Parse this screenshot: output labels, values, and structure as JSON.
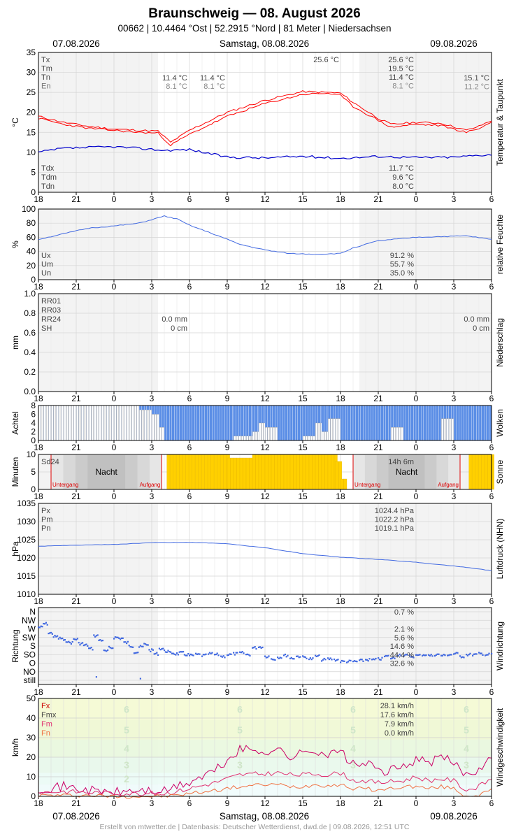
{
  "header": {
    "title": "Braunschweig  —  08. August 2026",
    "subtitle": "00662  |  10.4464 °Ost  |  52.2915 °Nord  |  81 Meter  |  Niedersachsen",
    "date_left": "07.08.2026",
    "date_center": "Samstag, 08.08.2026",
    "date_right": "09.08.2026"
  },
  "footer": {
    "credit": "Erstellt von mtwetter.de | Datenbasis: Deutscher Wetterdienst, dwd.de | 09.08.2026, 12:51 UTC"
  },
  "x_ticks": [
    "18",
    "21",
    "0",
    "3",
    "6",
    "9",
    "12",
    "15",
    "18",
    "21",
    "0",
    "3",
    "6"
  ],
  "x_range_hours": [
    -6,
    30
  ],
  "night_bands_hours": [
    [
      -6,
      3.5
    ],
    [
      19.5,
      30
    ]
  ],
  "colors": {
    "temp": "#ff0000",
    "dew": "#0000cc",
    "line_blue": "#4169e1",
    "cloud": "#5b8ee6",
    "sun": "#ffd000",
    "wind_fx": "#cc0066",
    "wind_fm": "#e0306f",
    "wind_fn": "#f07040",
    "sun_mark": "#dd0000"
  },
  "chart_data": [
    {
      "type": "line",
      "id": "temperature",
      "ylabel": "°C",
      "side_label": "Temperatur & Taupunkt",
      "ylim": [
        0,
        35
      ],
      "yticks": [
        0,
        5,
        10,
        15,
        20,
        25,
        30,
        35
      ],
      "legend_top": [
        "Tx",
        "Tm",
        "Tn",
        "En"
      ],
      "legend_bottom": [
        "Tdx",
        "Tdm",
        "Tdn"
      ],
      "annotations": [
        "25.6 °C",
        "11.4 °C",
        "8.1 °C",
        "11.4 °C",
        "8.1 °C"
      ],
      "summary_top": [
        "25.6 °C",
        "19.5 °C",
        "11.4 °C",
        "8.1 °C"
      ],
      "summary_right": [
        "15.1 °C",
        "11.2 °C"
      ],
      "summary_bottom": [
        "11.7 °C",
        "9.6 °C",
        "8.0 °C"
      ],
      "series": [
        {
          "name": "Tx",
          "x": [
            -6,
            -4,
            -2,
            0,
            2,
            3.5,
            4.5,
            6,
            9,
            12,
            15,
            17,
            18,
            19,
            21,
            22,
            24,
            26,
            28,
            29,
            30
          ],
          "y": [
            19,
            17.5,
            16.5,
            15.8,
            15.5,
            15.3,
            12.5,
            15.5,
            20,
            23,
            25.2,
            25,
            24.8,
            22.5,
            18.5,
            17,
            17.5,
            17.3,
            15.5,
            16.5,
            18
          ]
        },
        {
          "name": "Tn",
          "x": [
            -6,
            -4,
            -2,
            0,
            2,
            3.5,
            4.5,
            6,
            9,
            12,
            15,
            17,
            18,
            19,
            21,
            22,
            24,
            26,
            28,
            29,
            30
          ],
          "y": [
            18.5,
            17,
            16,
            15.5,
            15,
            14.8,
            11.8,
            14.5,
            19,
            22.2,
            24.5,
            24.8,
            24.2,
            21.5,
            18,
            16.3,
            17,
            16.7,
            15,
            16,
            17.5
          ]
        },
        {
          "name": "Td",
          "x": [
            -6,
            -4,
            -2,
            0,
            2,
            4,
            6,
            9,
            12,
            15,
            18,
            21,
            24,
            27,
            30
          ],
          "y": [
            10,
            11,
            11.2,
            11.4,
            11,
            10.5,
            10.7,
            8.8,
            8.6,
            9,
            8.5,
            9,
            8.7,
            8.8,
            9.5
          ]
        }
      ]
    },
    {
      "type": "line",
      "id": "humidity",
      "ylabel": "%",
      "side_label": "relative Feuchte",
      "ylim": [
        0,
        100
      ],
      "yticks": [
        0,
        20,
        40,
        60,
        80,
        100
      ],
      "legend": [
        "Ux",
        "Um",
        "Un"
      ],
      "summary": [
        "91.2 %",
        "55.7 %",
        "35.0 %"
      ],
      "series": [
        {
          "name": "U",
          "x": [
            -6,
            -4,
            -2,
            0,
            2,
            4,
            5,
            6,
            8,
            10,
            12,
            14,
            16,
            18,
            19,
            21,
            24,
            26,
            28,
            30
          ],
          "y": [
            57,
            65,
            73,
            76,
            80,
            90,
            86,
            77,
            64,
            50,
            42,
            37,
            36,
            37,
            45,
            55,
            60,
            61,
            62,
            57
          ]
        }
      ]
    },
    {
      "type": "bar",
      "id": "precipitation",
      "ylabel": "mm",
      "side_label": "Niederschlag",
      "ylim": [
        0,
        1.0
      ],
      "yticks": [
        0,
        0.2,
        0.4,
        0.6,
        0.8,
        1.0
      ],
      "legend": [
        "RR01",
        "RR03",
        "RR24",
        "SH"
      ],
      "summary_mid": [
        "0.0 mm",
        "0 cm"
      ],
      "summary_right": [
        "0.0 mm",
        "0 cm"
      ],
      "values": []
    },
    {
      "type": "bar",
      "id": "clouds",
      "ylabel": "Achtel",
      "side_label": "Wolken",
      "ylim": [
        0,
        8
      ],
      "yticks": [
        0,
        2,
        4,
        6,
        8
      ],
      "segments": [
        {
          "x": [
            -6,
            2
          ],
          "free": 8
        },
        {
          "x": [
            2,
            3
          ],
          "free": 7
        },
        {
          "x": [
            3,
            3.6
          ],
          "free": 6
        },
        {
          "x": [
            3.6,
            4
          ],
          "free": 3
        },
        {
          "x": [
            4,
            9.5
          ],
          "free": 0
        },
        {
          "x": [
            9.5,
            11
          ],
          "free": 1
        },
        {
          "x": [
            11,
            11.5
          ],
          "free": 2
        },
        {
          "x": [
            11.5,
            12
          ],
          "free": 4
        },
        {
          "x": [
            12,
            13
          ],
          "free": 3
        },
        {
          "x": [
            13,
            15
          ],
          "free": 0
        },
        {
          "x": [
            15,
            16
          ],
          "free": 1
        },
        {
          "x": [
            16,
            16.5
          ],
          "free": 4
        },
        {
          "x": [
            16.5,
            17
          ],
          "free": 2
        },
        {
          "x": [
            17,
            18
          ],
          "free": 5
        },
        {
          "x": [
            18,
            22
          ],
          "free": 0
        },
        {
          "x": [
            22,
            23
          ],
          "free": 3
        },
        {
          "x": [
            23,
            26
          ],
          "free": 0
        },
        {
          "x": [
            26,
            27
          ],
          "free": 5
        },
        {
          "x": [
            27,
            30
          ],
          "free": 0
        }
      ]
    },
    {
      "type": "bar",
      "id": "sunshine",
      "ylabel": "Minuten",
      "side_label": "Sonne",
      "ylim": [
        0,
        10
      ],
      "yticks": [
        0,
        5,
        10
      ],
      "legend": [
        "Sd24"
      ],
      "summary": "14h 6m",
      "night_label": "Nacht",
      "sunset_label": "Untergang",
      "sunrise_label": "Aufgang",
      "sunset_hours": [
        -5.0,
        19
      ],
      "sunrise_hours": [
        3.8,
        27.5
      ],
      "sun_segments": [
        {
          "x": [
            4.2,
            9
          ],
          "y": 10
        },
        {
          "x": [
            9,
            11
          ],
          "y": 9
        },
        {
          "x": [
            11,
            14
          ],
          "y": 10
        },
        {
          "x": [
            14,
            17.6
          ],
          "y": 10
        },
        {
          "x": [
            17.6,
            18
          ],
          "y": 8
        },
        {
          "x": [
            18,
            18.3
          ],
          "y": 3
        },
        {
          "x": [
            28.2,
            30
          ],
          "y": 10
        }
      ]
    },
    {
      "type": "line",
      "id": "pressure",
      "ylabel": "hPa",
      "side_label": "Luftdruck (NHN)",
      "ylim": [
        1010,
        1035
      ],
      "yticks": [
        1010,
        1015,
        1020,
        1025,
        1030,
        1035
      ],
      "legend": [
        "Px",
        "Pm",
        "Pn"
      ],
      "summary": [
        "1024.4 hPa",
        "1022.2 hPa",
        "1019.1 hPa"
      ],
      "series": [
        {
          "name": "P",
          "x": [
            -6,
            -3,
            0,
            3,
            6,
            9,
            12,
            15,
            18,
            21,
            24,
            27,
            30
          ],
          "y": [
            1023.2,
            1023.5,
            1023.7,
            1024.2,
            1024.3,
            1023.9,
            1022.8,
            1021.2,
            1020.2,
            1019.6,
            1018.8,
            1017.8,
            1016.5
          ]
        }
      ]
    },
    {
      "type": "scatter",
      "id": "wind_direction",
      "ylabel": "Richtung",
      "side_label": "Windrichtung",
      "categories": [
        "N",
        "NW",
        "W",
        "SW",
        "S",
        "SO",
        "O",
        "NO",
        "still"
      ],
      "summary": [
        "0.7 %",
        "",
        "2.1 %",
        "5.6 %",
        "14.6 %",
        "44.4 %",
        "32.6 %"
      ],
      "points_x": [
        -6,
        -5.6,
        -5.2,
        -4.8,
        -4.4,
        -4,
        -3.6,
        -3.2,
        -2.8,
        -2.4,
        -2,
        -1.6,
        -1.2,
        -0.8,
        -0.4,
        0,
        0.4,
        0.8,
        1.2,
        1.6,
        2,
        2.4,
        2.8,
        3.2,
        3.6,
        4,
        4.4,
        4.8,
        5.2,
        5.6,
        6,
        6.5,
        7,
        7.5,
        8,
        8.5,
        9,
        9.5,
        10,
        10.5,
        11,
        11.5,
        12,
        12.5,
        13,
        13.5,
        14,
        14.5,
        15,
        15.5,
        16,
        16.5,
        17,
        17.5,
        18,
        18.5,
        19,
        19.5,
        20,
        20.5,
        21,
        21.5,
        22,
        22.5,
        23,
        23.5,
        24,
        24.5,
        25,
        25.5,
        26,
        26.5,
        27,
        27.5,
        28,
        28.5,
        29,
        29.5,
        30
      ],
      "points_y": [
        1.8,
        1.4,
        2.5,
        2.9,
        3.1,
        3.4,
        3.6,
        3.2,
        3.7,
        3.9,
        4.3,
        2.8,
        3.3,
        4.6,
        4.2,
        3.0,
        3.1,
        3.6,
        4.0,
        4.7,
        4.1,
        3.8,
        4.5,
        4.9,
        4.3,
        4.6,
        4.8,
        4.9,
        4.8,
        5.0,
        5.1,
        5.0,
        5.1,
        4.9,
        5.0,
        5.2,
        5.0,
        4.9,
        4.8,
        5.0,
        4.2,
        4.1,
        5.2,
        5.5,
        5.3,
        5.1,
        5.4,
        5.2,
        5.3,
        5.5,
        5.2,
        5.6,
        5.5,
        5.6,
        5.8,
        5.8,
        5.8,
        5.7,
        5.6,
        5.6,
        5.5,
        5.2,
        5.4,
        5.0,
        5.1,
        5.2,
        5.1,
        5.0,
        5.1,
        5.0,
        5.1,
        5.0,
        4.9,
        5.2,
        5.0,
        5.0,
        4.9,
        5.0,
        4.9
      ]
    },
    {
      "type": "line",
      "id": "wind_speed",
      "ylabel": "km/h",
      "side_label": "Windgeschwindigkeit",
      "ylim": [
        0,
        50
      ],
      "yticks": [
        0,
        10,
        20,
        30,
        40,
        50
      ],
      "legend": [
        "Fx",
        "Fmx",
        "Fm",
        "Fn"
      ],
      "summary": [
        "28.1 km/h",
        "17.6 km/h",
        "7.9 km/h",
        "0.0 km/h"
      ],
      "beaufort_labels": [
        "2",
        "3",
        "4",
        "5",
        "6"
      ],
      "beaufort_bounds": [
        0,
        6,
        12,
        20,
        29,
        39,
        50
      ],
      "series": [
        {
          "name": "Fx",
          "x": [
            -6,
            -4,
            -2,
            0,
            2,
            4,
            5,
            6,
            8,
            9,
            10,
            12,
            13,
            14,
            15,
            16,
            17,
            18,
            19,
            20,
            21,
            22,
            23,
            24,
            25,
            26,
            27,
            28,
            29,
            30
          ],
          "y": [
            4,
            5,
            3,
            2,
            3,
            2.5,
            5,
            7,
            13,
            18,
            24,
            23,
            24,
            20,
            22,
            24,
            21,
            23,
            16,
            17,
            13,
            13,
            15,
            19,
            17,
            20,
            17,
            11,
            14,
            22
          ]
        },
        {
          "name": "Fm",
          "x": [
            -6,
            -4,
            -2,
            0,
            2,
            4,
            5,
            6,
            8,
            9,
            10,
            12,
            13,
            14,
            15,
            16,
            17,
            18,
            19,
            20,
            21,
            22,
            23,
            24,
            25,
            26,
            27,
            28,
            29,
            30
          ],
          "y": [
            2,
            2.5,
            2,
            1.5,
            1.5,
            1.5,
            2.5,
            4,
            7,
            9,
            11,
            11.5,
            12,
            11,
            11,
            11.5,
            11,
            12,
            8,
            8,
            7,
            7.5,
            8,
            10,
            8,
            9,
            8,
            3,
            5,
            9
          ]
        },
        {
          "name": "Fn",
          "x": [
            -6,
            -4,
            -2,
            0,
            2,
            4,
            5,
            6,
            8,
            9,
            10,
            12,
            13,
            14,
            15,
            16,
            17,
            18,
            19,
            20,
            21,
            22,
            23,
            24,
            25,
            26,
            27,
            28,
            29,
            30
          ],
          "y": [
            0.5,
            0.5,
            0.5,
            0,
            0,
            0,
            0.5,
            1.5,
            3,
            4,
            5,
            6,
            6,
            5,
            5,
            6,
            5.5,
            6,
            4,
            4,
            3,
            4,
            5,
            5,
            4,
            5,
            4,
            0,
            1,
            3
          ]
        }
      ]
    }
  ]
}
